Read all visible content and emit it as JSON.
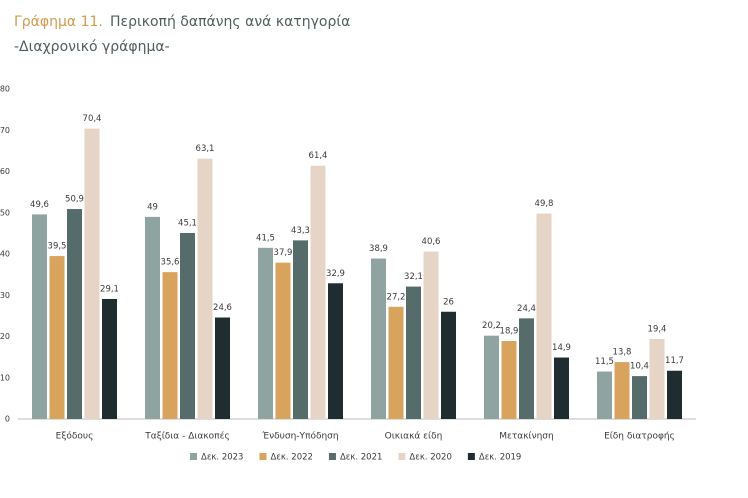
{
  "chart_data": {
    "type": "bar",
    "title_label": "Γράφημα 11.",
    "title": "Περικοπή δαπάνης ανά κατηγορία",
    "subtitle": "-Διαχρονικό γράφημα-",
    "categories": [
      "Εξόδους",
      "Ταξίδια - Διακοπές",
      "Ένδυση-Υπόδηση",
      "Οικιακά είδη",
      "Μετακίνηση",
      "Είδη διατροφής"
    ],
    "series": [
      {
        "name": "Δεκ. 2023",
        "color": "#8fa3a0",
        "values": [
          49.6,
          49,
          41.5,
          38.9,
          20.2,
          11.5
        ],
        "value_labels": [
          "49,6",
          "49",
          "41,5",
          "38,9",
          "20,2",
          "11,5"
        ]
      },
      {
        "name": "Δεκ. 2022",
        "color": "#d8a35c",
        "values": [
          39.5,
          35.6,
          37.9,
          27.2,
          18.9,
          13.8
        ],
        "value_labels": [
          "39,5",
          "35,6",
          "37,9",
          "27,2",
          "18,9",
          "13,8"
        ]
      },
      {
        "name": "Δεκ. 2021",
        "color": "#556c6a",
        "values": [
          50.9,
          45.1,
          43.3,
          32.1,
          24.4,
          10.4
        ],
        "value_labels": [
          "50,9",
          "45,1",
          "43,3",
          "32,1",
          "24,4",
          "10,4"
        ]
      },
      {
        "name": "Δεκ. 2020",
        "color": "#e6d4c6",
        "values": [
          70.4,
          63.1,
          61.4,
          40.6,
          49.8,
          19.4
        ],
        "value_labels": [
          "70,4",
          "63,1",
          "61,4",
          "40,6",
          "49,8",
          "19,4"
        ]
      },
      {
        "name": "Δεκ. 2019",
        "color": "#1f2c30",
        "values": [
          29.1,
          24.6,
          32.9,
          26,
          14.9,
          11.7
        ],
        "value_labels": [
          "29,1",
          "24,6",
          "32,9",
          "26",
          "14,9",
          "11,7"
        ]
      }
    ],
    "ylim": [
      0,
      80
    ],
    "yticks": [
      0,
      10,
      20,
      30,
      40,
      50,
      60,
      70,
      80
    ],
    "grid": false
  }
}
